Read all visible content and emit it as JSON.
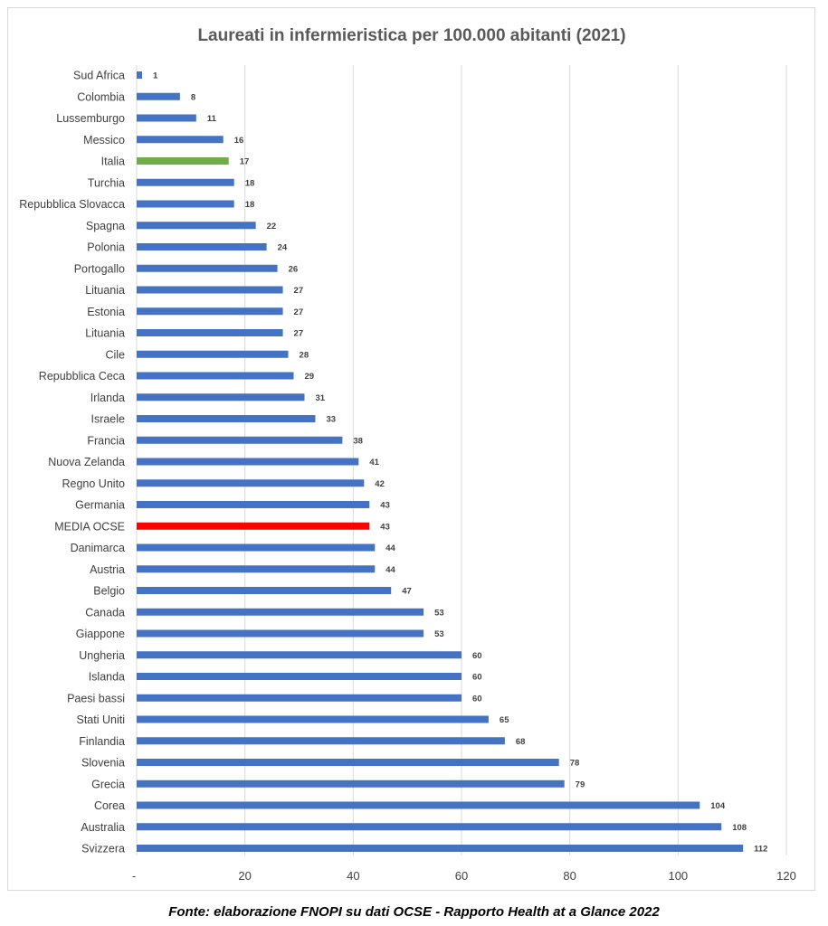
{
  "chart_data": {
    "type": "bar",
    "orientation": "horizontal",
    "title": "Laureati in infermieristica per 100.000 abitanti (2021)",
    "xlim": [
      0,
      120
    ],
    "xticks": [
      0,
      20,
      40,
      60,
      80,
      100,
      120
    ],
    "xtick_labels": [
      "-",
      "20",
      "40",
      "60",
      "80",
      "100",
      "120"
    ],
    "grid": "vertical",
    "categories": [
      "Sud Africa",
      "Colombia",
      "Lussemburgo",
      "Messico",
      "Italia",
      "Turchia",
      "Repubblica Slovacca",
      "Spagna",
      "Polonia",
      "Portogallo",
      "Lituania",
      "Estonia",
      "Lituania",
      "Cile",
      "Repubblica Ceca",
      "Irlanda",
      "Israele",
      "Francia",
      "Nuova Zelanda",
      "Regno Unito",
      "Germania",
      "MEDIA OCSE",
      "Danimarca",
      "Austria",
      "Belgio",
      "Canada",
      "Giappone",
      "Ungheria",
      "Islanda",
      "Paesi bassi",
      "Stati Uniti",
      "Finlandia",
      "Slovenia",
      "Grecia",
      "Corea",
      "Australia",
      "Svizzera"
    ],
    "values": [
      1,
      8,
      11,
      16,
      17,
      18,
      18,
      22,
      24,
      26,
      27,
      27,
      27,
      28,
      29,
      31,
      33,
      38,
      41,
      42,
      43,
      43,
      44,
      44,
      47,
      53,
      53,
      60,
      60,
      60,
      65,
      68,
      78,
      79,
      104,
      108,
      112
    ],
    "colors": {
      "default": "#4472c4",
      "highlights": {
        "Italia": "#70ad47",
        "MEDIA OCSE": "#ff0000"
      },
      "grid": "#d9d9d9",
      "title": "#595959",
      "labels": "#404040"
    }
  },
  "source_note": "Fonte: elaborazione FNOPI su dati OCSE - Rapporto Health at a Glance 2022"
}
